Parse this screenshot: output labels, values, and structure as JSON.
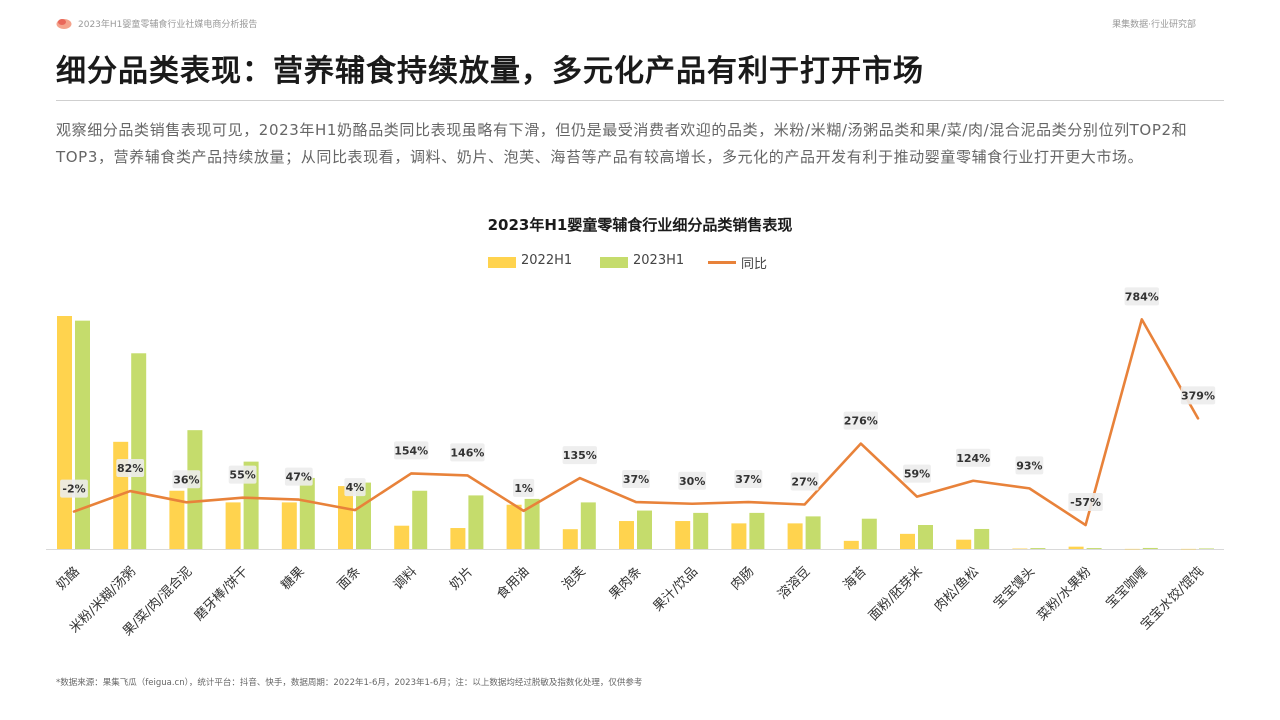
{
  "header": {
    "report_title": "2023年H1婴童零辅食行业社媒电商分析报告",
    "department": "果集数据·行业研究部"
  },
  "page": {
    "headline": "细分品类表现：营养辅食持续放量，多元化产品有利于打开市场",
    "description": "观察细分品类销售表现可见，2023年H1奶酪品类同比表现虽略有下滑，但仍是最受消费者欢迎的品类，米粉/米糊/汤粥品类和果/菜/肉/混合泥品类分别位列TOP2和TOP3，营养辅食类产品持续放量；从同比表现看，调料、奶片、泡芙、海苔等产品有较高增长，多元化的产品开发有利于推动婴童零辅食行业打开更大市场。",
    "footnote": "*数据来源：果集飞瓜（feigua.cn），统计平台：抖音、快手，数据周期：2022年1-6月，2023年1-6月；注：以上数据均经过脱敏及指数化处理，仅供参考"
  },
  "chart_data": {
    "type": "bar",
    "title": "2023年H1婴童零辅食行业细分品类销售表现",
    "legend_position": "top-center",
    "grid": false,
    "categories": [
      "奶酪",
      "米粉/米糊/汤粥",
      "果/菜/肉/混合泥",
      "磨牙棒/饼干",
      "糖果",
      "面条",
      "调料",
      "奶片",
      "食用油",
      "泡芙",
      "果肉条",
      "果汁/饮品",
      "肉肠",
      "溶溶豆",
      "海苔",
      "面粉/胚芽米",
      "肉松/鱼松",
      "宝宝馒头",
      "菜粉/水果粉",
      "宝宝咖喱",
      "宝宝水饺/馄饨"
    ],
    "series": [
      {
        "name": "2022H1",
        "kind": "bar",
        "color": "#FFD34E",
        "values": [
          100,
          46,
          25,
          20,
          20,
          27,
          10,
          9,
          19,
          8.5,
          12,
          12,
          11,
          11,
          3.5,
          6.5,
          4,
          0.2,
          1,
          0.05,
          0.05
        ]
      },
      {
        "name": "2023H1",
        "kind": "bar",
        "color": "#C5DC6C",
        "values": [
          98,
          84,
          51,
          37.5,
          30.5,
          28.5,
          25,
          23,
          21.5,
          20,
          16.5,
          15.5,
          15.5,
          14,
          13,
          10.3,
          8.6,
          0.4,
          0.4,
          0.45,
          0.24
        ]
      },
      {
        "name": "同比",
        "kind": "line",
        "color": "#E8823A",
        "values": [
          -2,
          82,
          36,
          55,
          47,
          4,
          154,
          146,
          1,
          135,
          37,
          30,
          37,
          27,
          276,
          59,
          124,
          93,
          -57,
          784,
          379
        ]
      }
    ],
    "labels": [
      "-2%",
      "82%",
      "36%",
      "55%",
      "47%",
      "4%",
      "154%",
      "146%",
      "1%",
      "135%",
      "37%",
      "30%",
      "37%",
      "27%",
      "276%",
      "59%",
      "124%",
      "93%",
      "-57%",
      "784%",
      "379%"
    ]
  }
}
